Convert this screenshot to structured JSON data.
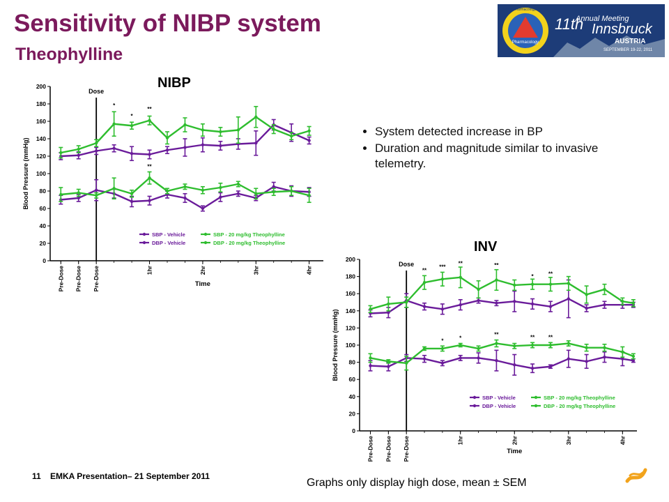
{
  "slide": {
    "title": "Sensitivity of NIBP system",
    "subtitle": "Theophylline",
    "bullets": [
      "System detected increase in BP",
      "Duration and magnitude similar to invasive telemetry."
    ],
    "note": "Graphs only display high dose, mean ± SEM",
    "footer_number": "11",
    "footer_text": "EMKA Presentation– 21 September 2011",
    "logo": {
      "conference": "Annual Meeting",
      "ordinal": "11th",
      "city": "Innsbruck",
      "country": "AUSTRIA",
      "dates": "SEPTEMBER 19-22, 2011",
      "society": "Safety Pharmacology Society",
      "seal_text": "Pharmacology"
    },
    "colors": {
      "title": "#7b1a5c",
      "vehicle": "#6a1b9a",
      "theophylline": "#2ebd2e",
      "logo_bg": "#1d3c78"
    }
  },
  "chart_data": [
    {
      "type": "line",
      "label": "NIBP",
      "xlabel": "Time",
      "ylabel": "Blood Pressure (mmHg)",
      "ylim": [
        0,
        200
      ],
      "yticks": [
        0,
        20,
        40,
        60,
        80,
        100,
        120,
        140,
        160,
        180,
        200
      ],
      "xticks": [
        {
          "x": 0,
          "label": "Pre-Dose"
        },
        {
          "x": 1,
          "label": "Pre-Dose"
        },
        {
          "x": 2,
          "label": "Pre-Dose"
        },
        {
          "x": 5,
          "label": "1hr"
        },
        {
          "x": 8,
          "label": "2hr"
        },
        {
          "x": 11,
          "label": "3hr"
        },
        {
          "x": 14,
          "label": "4hr"
        }
      ],
      "xrange": [
        -0.6,
        14.8
      ],
      "dose_x": 2,
      "dose_label": "Dose",
      "legend": {
        "position": "bottom-right",
        "entries": [
          "SBP - Vehicle",
          "SBP - 20 mg/kg Theophylline",
          "DBP - Vehicle",
          "DBP - 20 mg/kg Theophylline"
        ]
      },
      "x": [
        0,
        1,
        2,
        3,
        4,
        5,
        6,
        7,
        8,
        9,
        10,
        11,
        12,
        13,
        14
      ],
      "series": [
        {
          "name": "SBP - Vehicle",
          "color": "#6a1b9a",
          "values": [
            120,
            121,
            126,
            129,
            123,
            122,
            127,
            130,
            133,
            132,
            134,
            135,
            156,
            147,
            138
          ],
          "err": [
            4,
            4,
            4,
            4,
            8,
            5,
            4,
            10,
            8,
            5,
            6,
            14,
            6,
            10,
            4
          ]
        },
        {
          "name": "SBP - 20 mg/kg Theophylline",
          "color": "#2ebd2e",
          "values": [
            124,
            128,
            135,
            157,
            155,
            161,
            141,
            156,
            150,
            148,
            150,
            165,
            151,
            143,
            149
          ],
          "err": [
            6,
            4,
            4,
            14,
            4,
            5,
            7,
            8,
            7,
            5,
            15,
            12,
            5,
            4,
            5
          ]
        },
        {
          "name": "DBP - Vehicle",
          "color": "#6a1b9a",
          "values": [
            70,
            72,
            81,
            77,
            68,
            69,
            76,
            72,
            60,
            73,
            77,
            72,
            85,
            80,
            79
          ],
          "err": [
            5,
            4,
            12,
            5,
            6,
            5,
            4,
            5,
            3,
            5,
            3,
            3,
            5,
            6,
            5
          ]
        },
        {
          "name": "DBP - 20 mg/kg Theophylline",
          "color": "#2ebd2e",
          "values": [
            76,
            78,
            75,
            83,
            77,
            95,
            80,
            85,
            81,
            84,
            88,
            77,
            79,
            80,
            75
          ],
          "err": [
            8,
            4,
            3,
            12,
            4,
            7,
            3,
            3,
            4,
            5,
            3,
            6,
            4,
            5,
            8
          ]
        }
      ],
      "annotations": [
        {
          "x": 3,
          "y": 176,
          "text": "*"
        },
        {
          "x": 4,
          "y": 164,
          "text": "*"
        },
        {
          "x": 5,
          "y": 172,
          "text": "**"
        },
        {
          "x": 5,
          "y": 106,
          "text": "**"
        }
      ]
    },
    {
      "type": "line",
      "label": "INV",
      "xlabel": "Time",
      "ylabel": "Blood Pressure (mmHg)",
      "ylim": [
        0,
        200
      ],
      "yticks": [
        0,
        20,
        40,
        60,
        80,
        100,
        120,
        140,
        160,
        180,
        200
      ],
      "xticks": [
        {
          "x": 0,
          "label": "Pre-Dose"
        },
        {
          "x": 1,
          "label": "Pre-Dose"
        },
        {
          "x": 2,
          "label": "Pre-Dose"
        },
        {
          "x": 5,
          "label": "1hr"
        },
        {
          "x": 8,
          "label": "2hr"
        },
        {
          "x": 11,
          "label": "3hr"
        },
        {
          "x": 14,
          "label": "4hr"
        }
      ],
      "xrange": [
        -0.6,
        14.8
      ],
      "dose_x": 2,
      "dose_label": "Dose",
      "legend": {
        "position": "bottom-right",
        "entries": [
          "SBP - Vehicle",
          "SBP - 20 mg/kg Theophylline",
          "DBP - Vehicle",
          "DBP - 20 mg/kg Theophylline"
        ]
      },
      "x": [
        0,
        1,
        2,
        3,
        4,
        5,
        6,
        7,
        8,
        9,
        10,
        11,
        12,
        13,
        14,
        14.6
      ],
      "series": [
        {
          "name": "SBP - Vehicle",
          "color": "#6a1b9a",
          "values": [
            137,
            138,
            152,
            145,
            142,
            147,
            152,
            149,
            151,
            148,
            145,
            154,
            143,
            147,
            147,
            147
          ],
          "err": [
            4,
            6,
            8,
            4,
            6,
            6,
            3,
            3,
            12,
            6,
            6,
            22,
            4,
            4,
            4,
            3
          ]
        },
        {
          "name": "SBP - 20 mg/kg Theophylline",
          "color": "#2ebd2e",
          "values": [
            142,
            148,
            150,
            173,
            177,
            179,
            165,
            176,
            170,
            171,
            171,
            172,
            159,
            165,
            151,
            149
          ],
          "err": [
            4,
            8,
            6,
            8,
            8,
            12,
            10,
            12,
            6,
            6,
            8,
            8,
            10,
            6,
            4,
            4
          ]
        },
        {
          "name": "DBP - Vehicle",
          "color": "#6a1b9a",
          "values": [
            76,
            75,
            85,
            84,
            79,
            85,
            85,
            82,
            77,
            73,
            75,
            84,
            81,
            86,
            84,
            82
          ],
          "err": [
            6,
            5,
            4,
            4,
            3,
            3,
            6,
            12,
            12,
            5,
            2,
            10,
            8,
            6,
            8,
            2
          ]
        },
        {
          "name": "DBP - 20 mg/kg Theophylline",
          "color": "#2ebd2e",
          "values": [
            85,
            81,
            79,
            96,
            96,
            100,
            96,
            102,
            99,
            100,
            100,
            102,
            97,
            97,
            92,
            87
          ],
          "err": [
            5,
            2,
            8,
            2,
            3,
            2,
            3,
            4,
            3,
            3,
            3,
            3,
            4,
            4,
            6,
            3
          ]
        }
      ],
      "annotations": [
        {
          "x": 3,
          "y": 185,
          "text": "**"
        },
        {
          "x": 4,
          "y": 189,
          "text": "***"
        },
        {
          "x": 5,
          "y": 193,
          "text": "**"
        },
        {
          "x": 7,
          "y": 191,
          "text": "**"
        },
        {
          "x": 9,
          "y": 178,
          "text": "*"
        },
        {
          "x": 10,
          "y": 181,
          "text": "**"
        },
        {
          "x": 4,
          "y": 103,
          "text": "*"
        },
        {
          "x": 5,
          "y": 106,
          "text": "*"
        },
        {
          "x": 7,
          "y": 110,
          "text": "**"
        },
        {
          "x": 9,
          "y": 107,
          "text": "**"
        },
        {
          "x": 10,
          "y": 107,
          "text": "**"
        }
      ]
    }
  ]
}
